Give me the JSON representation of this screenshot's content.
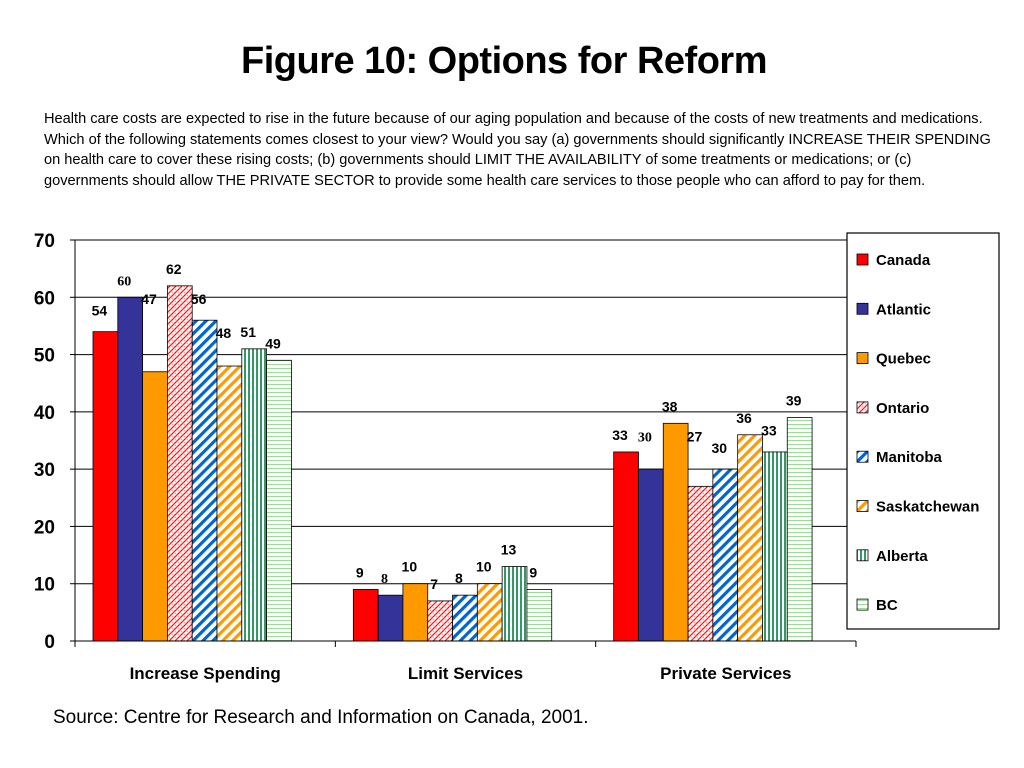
{
  "title": "Figure 10: Options for Reform",
  "question": "Health care costs are expected to rise in the future because of our aging population and because of the costs of new treatments and medications. Which of the following statements comes closest to your view? Would you say (a) governments should significantly INCREASE THEIR SPENDING on health care to cover these rising costs; (b) governments should LIMIT THE AVAILABILITY of some treatments or medications; or (c) governments should allow THE PRIVATE SECTOR to provide some health care services to those people who can afford to pay for them.",
  "source": "Source: Centre for Research and Information on Canada, 2001.",
  "chart_data": {
    "type": "bar",
    "categories": [
      "Increase Spending",
      "Limit Services",
      "Private Services"
    ],
    "ylim": [
      0,
      70
    ],
    "yticks": [
      0,
      10,
      20,
      30,
      40,
      50,
      60,
      70
    ],
    "grid": true,
    "legend_position": "right",
    "series": [
      {
        "name": "Canada",
        "values": [
          54,
          9,
          33
        ],
        "color": "#ff0000",
        "pattern": "solid"
      },
      {
        "name": "Atlantic",
        "values": [
          60,
          8,
          30
        ],
        "color": "#333399",
        "pattern": "solid"
      },
      {
        "name": "Quebec",
        "values": [
          47,
          10,
          38
        ],
        "color": "#ff9900",
        "pattern": "solid"
      },
      {
        "name": "Ontario",
        "values": [
          62,
          7,
          27
        ],
        "color": "#ff0000",
        "pattern": "crosshatch"
      },
      {
        "name": "Manitoba",
        "values": [
          56,
          8,
          30
        ],
        "color": "#0066cc",
        "pattern": "diagonal"
      },
      {
        "name": "Saskatchewan",
        "values": [
          48,
          10,
          36
        ],
        "color": "#ff9900",
        "pattern": "diagonal"
      },
      {
        "name": "Alberta",
        "values": [
          51,
          13,
          33
        ],
        "color": "#339966",
        "pattern": "vertical"
      },
      {
        "name": "BC",
        "values": [
          49,
          9,
          39
        ],
        "color": "#66cc66",
        "pattern": "dotted"
      }
    ]
  }
}
